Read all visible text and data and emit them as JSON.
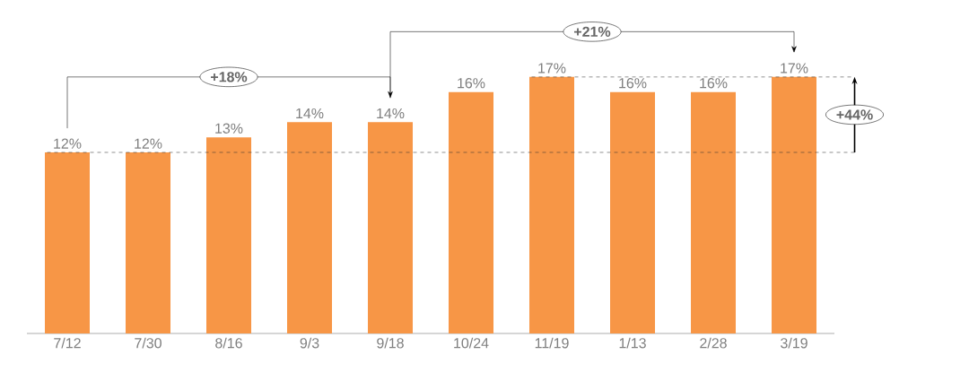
{
  "chart_data": {
    "type": "bar",
    "categories": [
      "7/12",
      "7/30",
      "8/16",
      "9/3",
      "9/18",
      "10/24",
      "11/19",
      "1/13",
      "2/28",
      "3/19"
    ],
    "values": [
      12,
      12,
      13,
      14,
      14,
      16,
      17,
      16,
      16,
      17
    ],
    "value_labels": [
      "12%",
      "12%",
      "13%",
      "14%",
      "14%",
      "16%",
      "17%",
      "16%",
      "16%",
      "17%"
    ],
    "color": "#f79646",
    "ref_lines": [
      {
        "axis": "y",
        "value": 12,
        "line_style": "dashed"
      },
      {
        "axis": "y",
        "value": 17,
        "line_style": "dashed"
      }
    ],
    "annotations": [
      "+18%",
      "+21%",
      "+44%"
    ]
  }
}
